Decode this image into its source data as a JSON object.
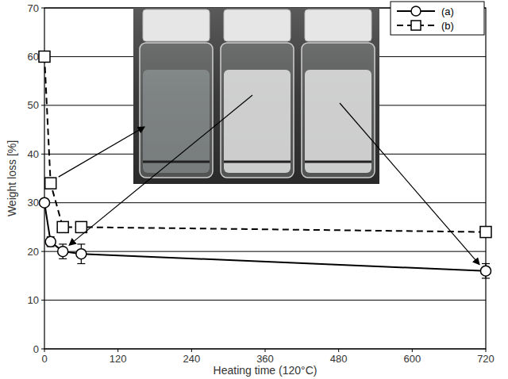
{
  "chart_data": {
    "type": "line",
    "xlabel": "Heating time (120°C)",
    "ylabel": "Weight loss [%]",
    "x": [
      0,
      10,
      30,
      60,
      720
    ],
    "series": [
      {
        "name": "(a)",
        "color": "#000000",
        "marker": "circle",
        "line_style": "solid",
        "values": [
          30,
          22,
          20,
          19.5,
          16
        ],
        "errors": [
          0.5,
          1,
          1.5,
          2,
          1.5
        ]
      },
      {
        "name": "(b)",
        "color": "#000000",
        "marker": "square",
        "line_style": "dashed",
        "values": [
          60,
          34,
          25,
          25,
          24
        ]
      }
    ],
    "xlim": [
      0,
      720
    ],
    "xticks": [
      0,
      120,
      240,
      360,
      480,
      600,
      720
    ],
    "ylim": [
      0,
      70
    ],
    "yticks": [
      0,
      10,
      20,
      30,
      40,
      50,
      60,
      70
    ],
    "grid": true,
    "legend": "upper right"
  }
}
